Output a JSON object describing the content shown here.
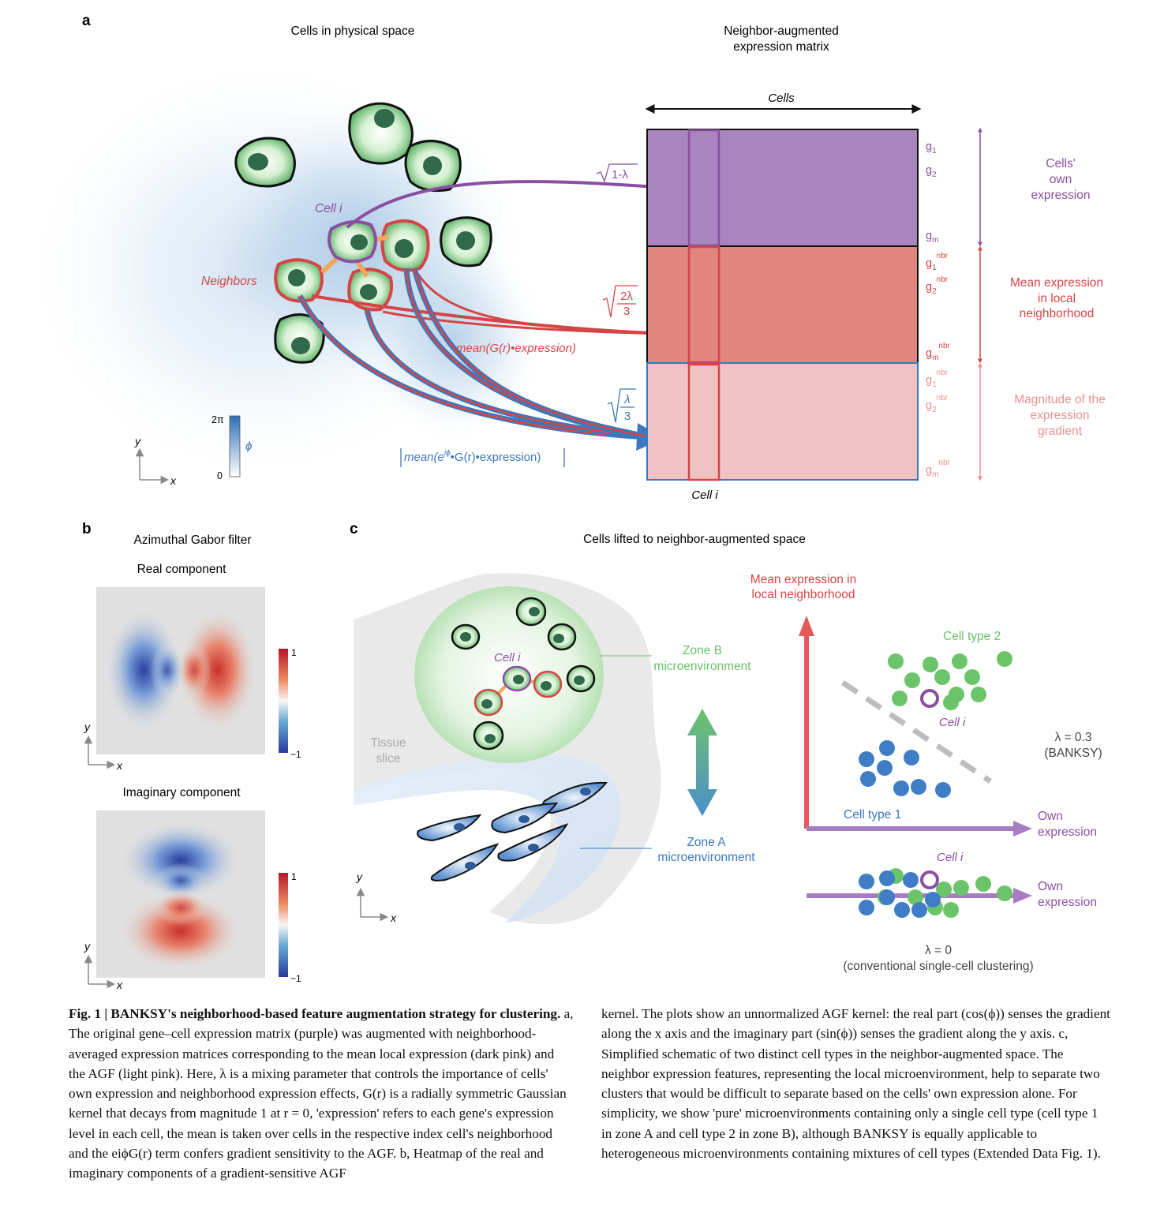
{
  "panel_a": {
    "letter": "a",
    "title_left": "Cells in physical space",
    "title_right_line1": "Neighbor-augmented",
    "title_right_line2": "expression matrix",
    "cells_axis": "Cells",
    "cell_i": "Cell i",
    "neighbors": "Neighbors",
    "weight_own": "1-λ",
    "weight_mean_num": "2λ",
    "weight_mean_den": "3",
    "weight_grad_num": "λ",
    "weight_grad_den": "3",
    "mean_label": "mean(G(r)•expression)",
    "agf_label_a": "mean(e",
    "agf_label_sup": "iϕ",
    "agf_label_b": "•G(r)•expression)",
    "colorbar_top": "2π",
    "colorbar_bottom": "0",
    "colorbar_symbol": "ϕ",
    "axis_y": "y",
    "axis_x": "x",
    "row_labels": {
      "g1": "g",
      "s1": "1",
      "g2": "g",
      "s2": "2",
      "gm": "g",
      "sm": "m",
      "nbr": "nbr"
    },
    "block_own": [
      "Cells'",
      "own",
      "expression"
    ],
    "block_mean": [
      "Mean expression",
      "in local",
      "neighborhood"
    ],
    "block_grad": [
      "Magnitude of the",
      "expression",
      "gradient"
    ],
    "colors": {
      "own": "#8b4fa1",
      "mean": "#d64545",
      "gradient": "#3b78bd",
      "light_pink": "#e8928e"
    }
  },
  "panel_b": {
    "letter": "b",
    "title": "Azimuthal Gabor filter",
    "real": "Real component",
    "imag": "Imaginary component",
    "cbar_top": "1",
    "cbar_bottom": "−1",
    "axis_y": "y",
    "axis_x": "x"
  },
  "panel_c": {
    "letter": "c",
    "title": "Cells lifted to neighbor-augmented space",
    "cell_i": "Cell i",
    "zone_b": [
      "Zone B",
      "microenvironment"
    ],
    "zone_a": [
      "Zone A",
      "microenvironment"
    ],
    "tissue": [
      "Tissue",
      "slice"
    ],
    "axis_y": "y",
    "axis_x": "x",
    "y_axis_label": [
      "Mean expression in",
      "local neighborhood"
    ],
    "x_axis_label": [
      "Own",
      "expression"
    ],
    "cell_type_2": "Cell type 2",
    "cell_type_1": "Cell type 1",
    "lambda_03": [
      "λ = 0.3",
      "(BANKSY)"
    ],
    "lambda_0": [
      "λ = 0",
      "(conventional single-cell clustering)"
    ]
  },
  "caption": {
    "bold_lead": "Fig. 1 | BANKSY's neighborhood-based feature augmentation strategy for clustering.",
    "left_rest": "a, The original gene–cell expression matrix (purple) was augmented with neighborhood-averaged expression matrices corresponding to the mean local expression (dark pink) and the AGF (light pink). Here, λ is a mixing parameter that controls the importance of cells' own expression and neighborhood expression effects, G(r) is a radially symmetric Gaussian kernel that decays from magnitude 1 at r = 0, 'expression' refers to each gene's expression level in each cell, the mean is taken over cells in the respective index cell's neighborhood and the eiϕG(r) term confers gradient sensitivity to the AGF. b, Heatmap of the real and imaginary components of a gradient-sensitive AGF",
    "right": "kernel. The plots show an unnormalized AGF kernel: the real part (cos(ϕ)) senses the gradient along the x axis and the imaginary part (sin(ϕ)) senses the gradient along the y axis. c, Simplified schematic of two distinct cell types in the neighbor-augmented space. The neighbor expression features, representing the local microenvironment, help to separate two clusters that would be difficult to separate based on the cells' own expression alone. For simplicity, we show 'pure' microenvironments containing only a single cell type (cell type 1 in zone A and cell type 2 in zone B), although BANKSY is equally applicable to heterogeneous microenvironments containing mixtures of cell types (Extended Data Fig. 1)."
  }
}
